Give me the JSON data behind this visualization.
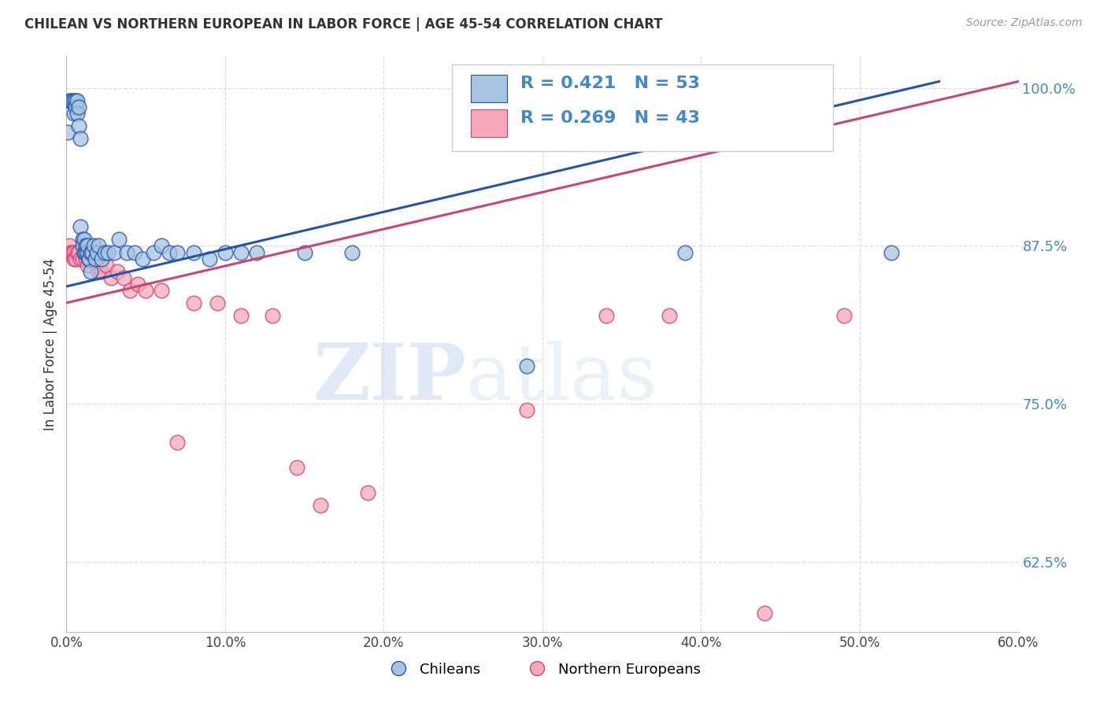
{
  "title": "CHILEAN VS NORTHERN EUROPEAN IN LABOR FORCE | AGE 45-54 CORRELATION CHART",
  "source": "Source: ZipAtlas.com",
  "ylabel": "In Labor Force | Age 45-54",
  "xlim": [
    0.0,
    0.6
  ],
  "ylim": [
    0.57,
    1.025
  ],
  "yticks": [
    0.625,
    0.75,
    0.875,
    1.0
  ],
  "xticks": [
    0.0,
    0.1,
    0.2,
    0.3,
    0.4,
    0.5,
    0.6
  ],
  "legend_label1": "Chileans",
  "legend_label2": "Northern Europeans",
  "r1": 0.421,
  "n1": 53,
  "r2": 0.269,
  "n2": 43,
  "color_blue": "#A8C4E0",
  "color_pink": "#F4A8B8",
  "line_color_blue": "#2255AA",
  "line_color_pink": "#CC4477",
  "background_color": "#FFFFFF",
  "grid_color": "#DDDDDD",
  "axis_tick_color": "#4488CC",
  "title_color": "#333333",
  "chilean_x": [
    0.001,
    0.002,
    0.003,
    0.004,
    0.005,
    0.005,
    0.006,
    0.006,
    0.007,
    0.007,
    0.008,
    0.008,
    0.009,
    0.009,
    0.01,
    0.01,
    0.011,
    0.011,
    0.012,
    0.012,
    0.013,
    0.013,
    0.014,
    0.014,
    0.015,
    0.015,
    0.016,
    0.017,
    0.018,
    0.019,
    0.02,
    0.022,
    0.024,
    0.026,
    0.03,
    0.033,
    0.038,
    0.043,
    0.048,
    0.055,
    0.06,
    0.065,
    0.07,
    0.08,
    0.09,
    0.1,
    0.11,
    0.12,
    0.15,
    0.18,
    0.29,
    0.39,
    0.52
  ],
  "chilean_y": [
    0.965,
    0.99,
    0.99,
    0.99,
    0.99,
    0.98,
    0.99,
    0.985,
    0.99,
    0.98,
    0.97,
    0.985,
    0.96,
    0.89,
    0.88,
    0.875,
    0.88,
    0.87,
    0.875,
    0.87,
    0.87,
    0.875,
    0.865,
    0.865,
    0.87,
    0.855,
    0.87,
    0.875,
    0.865,
    0.87,
    0.875,
    0.865,
    0.87,
    0.87,
    0.87,
    0.88,
    0.87,
    0.87,
    0.865,
    0.87,
    0.875,
    0.87,
    0.87,
    0.87,
    0.865,
    0.87,
    0.87,
    0.87,
    0.87,
    0.87,
    0.78,
    0.87,
    0.87
  ],
  "northern_x": [
    0.001,
    0.002,
    0.003,
    0.004,
    0.005,
    0.005,
    0.006,
    0.007,
    0.008,
    0.009,
    0.01,
    0.011,
    0.012,
    0.013,
    0.014,
    0.015,
    0.016,
    0.017,
    0.018,
    0.019,
    0.02,
    0.022,
    0.025,
    0.028,
    0.032,
    0.036,
    0.04,
    0.045,
    0.05,
    0.06,
    0.07,
    0.08,
    0.095,
    0.11,
    0.13,
    0.145,
    0.16,
    0.19,
    0.29,
    0.34,
    0.38,
    0.44,
    0.49
  ],
  "northern_y": [
    0.87,
    0.875,
    0.87,
    0.87,
    0.87,
    0.865,
    0.865,
    0.87,
    0.87,
    0.865,
    0.865,
    0.87,
    0.865,
    0.86,
    0.875,
    0.87,
    0.87,
    0.865,
    0.865,
    0.86,
    0.855,
    0.855,
    0.86,
    0.85,
    0.855,
    0.85,
    0.84,
    0.845,
    0.84,
    0.84,
    0.72,
    0.83,
    0.83,
    0.82,
    0.82,
    0.7,
    0.67,
    0.68,
    0.745,
    0.82,
    0.82,
    0.585,
    0.82
  ],
  "blue_line_x": [
    0.0,
    0.55
  ],
  "blue_line_y": [
    0.843,
    1.005
  ],
  "pink_line_x": [
    0.0,
    0.6
  ],
  "pink_line_y": [
    0.83,
    1.005
  ]
}
